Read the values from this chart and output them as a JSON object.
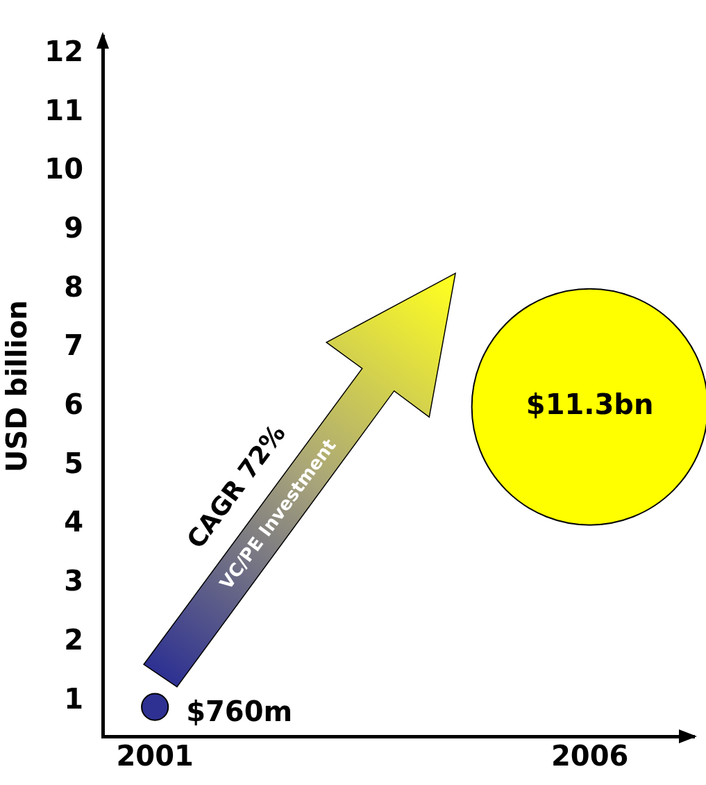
{
  "chart_data": {
    "type": "bubble",
    "ylabel": "USD billion",
    "x": [
      2001,
      2006
    ],
    "xlim": [
      2000.4,
      2007.2
    ],
    "xticks": [
      2001,
      2006
    ],
    "ylim": [
      0.4,
      12.3
    ],
    "yticks": [
      1,
      2,
      3,
      4,
      5,
      6,
      7,
      8,
      9,
      10,
      11,
      12
    ],
    "grid": false,
    "legend": false,
    "series": [
      {
        "colors": [
          "#2e3192",
          "#ffff00"
        ],
        "values": [
          0.9,
          6
        ],
        "sizes": [
          0.0126,
          1
        ]
      }
    ],
    "annotations": [
      {
        "text": "$760m",
        "x": 2001,
        "y": 0.9
      },
      {
        "text": "$11.3bn",
        "x": 2006,
        "y": 6
      },
      "CAGR 72%",
      "VC/PE Investment"
    ]
  }
}
